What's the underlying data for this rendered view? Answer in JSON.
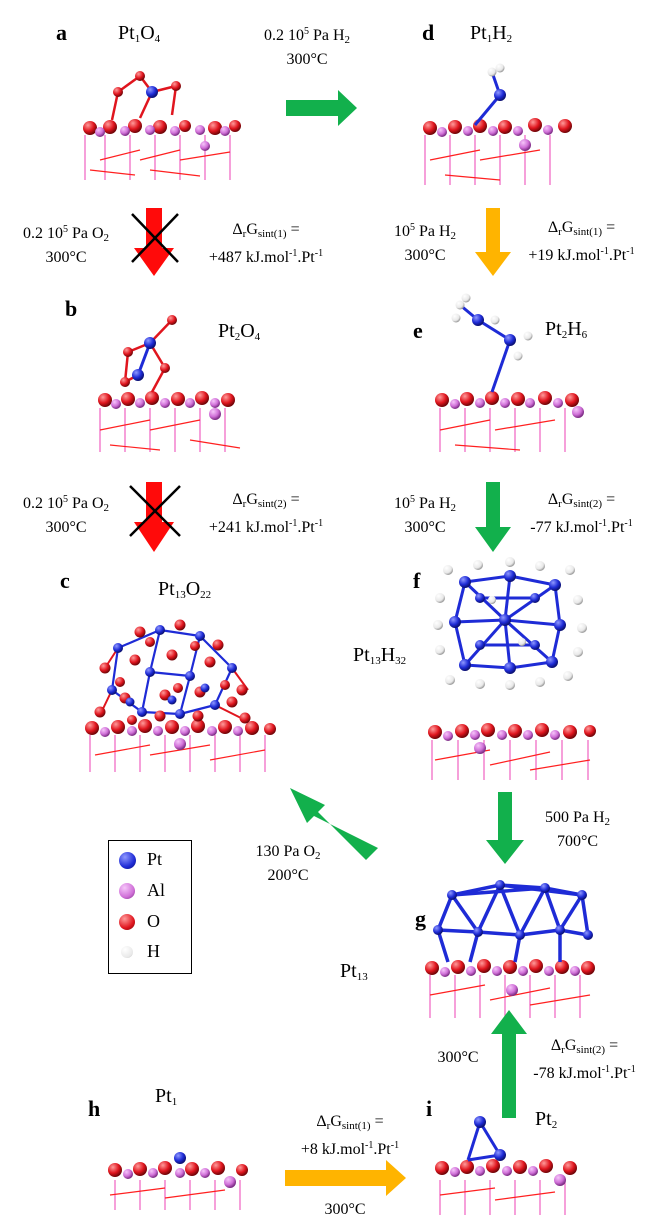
{
  "colors": {
    "green": "#12b04c",
    "red": "#ff0a0a",
    "amber": "#ffb400",
    "pt": "#1e2bd6",
    "al": "#d070d8",
    "o": "#e0151e",
    "h": "#f2f2f2"
  },
  "panels": {
    "a": {
      "letter": "a",
      "formula": "Pt1O4"
    },
    "b": {
      "letter": "b",
      "formula": "Pt2O4"
    },
    "c": {
      "letter": "c",
      "formula": "Pt13O22"
    },
    "d": {
      "letter": "d",
      "formula": "Pt1H2"
    },
    "e": {
      "letter": "e",
      "formula": "Pt2H6"
    },
    "f": {
      "letter": "f",
      "formula": "Pt13H32"
    },
    "g": {
      "letter": "g",
      "formula": "Pt13"
    },
    "h": {
      "letter": "h",
      "formula": "Pt1"
    },
    "i": {
      "letter": "i",
      "formula": "Pt2"
    }
  },
  "conditions": {
    "a_to_d": {
      "line1": "0.2 105 Pa H2",
      "line2": "300°C"
    },
    "a_to_b": {
      "line1": "0.2 105 Pa O2",
      "line2": "300°C"
    },
    "a_to_b_energy": {
      "line1": "ΔrGsint(1) =",
      "line2": "+487 kJ.mol-1.Pt-1"
    },
    "b_to_c": {
      "line1": "0.2 105 Pa O2",
      "line2": "300°C"
    },
    "b_to_c_energy": {
      "line1": "ΔrGsint(2) =",
      "line2": "+241 kJ.mol-1.Pt-1"
    },
    "d_to_e": {
      "line1": "105 Pa H2",
      "line2": "300°C"
    },
    "d_to_e_energy": {
      "line1": "ΔrGsint(1) =",
      "line2": "+19 kJ.mol-1.Pt-1"
    },
    "e_to_f": {
      "line1": "105 Pa H2",
      "line2": "300°C"
    },
    "e_to_f_energy": {
      "line1": "ΔrGsint(2) =",
      "line2": "-77 kJ.mol-1.Pt-1"
    },
    "f_to_g": {
      "line1": "500 Pa H2",
      "line2": "700°C"
    },
    "g_to_c": {
      "line1": "130 Pa O2",
      "line2": "200°C"
    },
    "i_to_g": {
      "line1": "300°C"
    },
    "i_to_g_energy": {
      "line1": "ΔrGsint(2) =",
      "line2": "-78 kJ.mol-1.Pt-1"
    },
    "h_to_i_energy": {
      "line1": "ΔrGsint(1) =",
      "line2": "+8 kJ.mol-1.Pt-1"
    },
    "h_to_i": {
      "line1": "300°C"
    }
  },
  "legend": {
    "items": [
      {
        "label": "Pt",
        "color": "#1e2bd6"
      },
      {
        "label": "Al",
        "color": "#d070d8"
      },
      {
        "label": "O",
        "color": "#e0151e"
      },
      {
        "label": "H",
        "color": "#f2f2f2"
      }
    ]
  }
}
